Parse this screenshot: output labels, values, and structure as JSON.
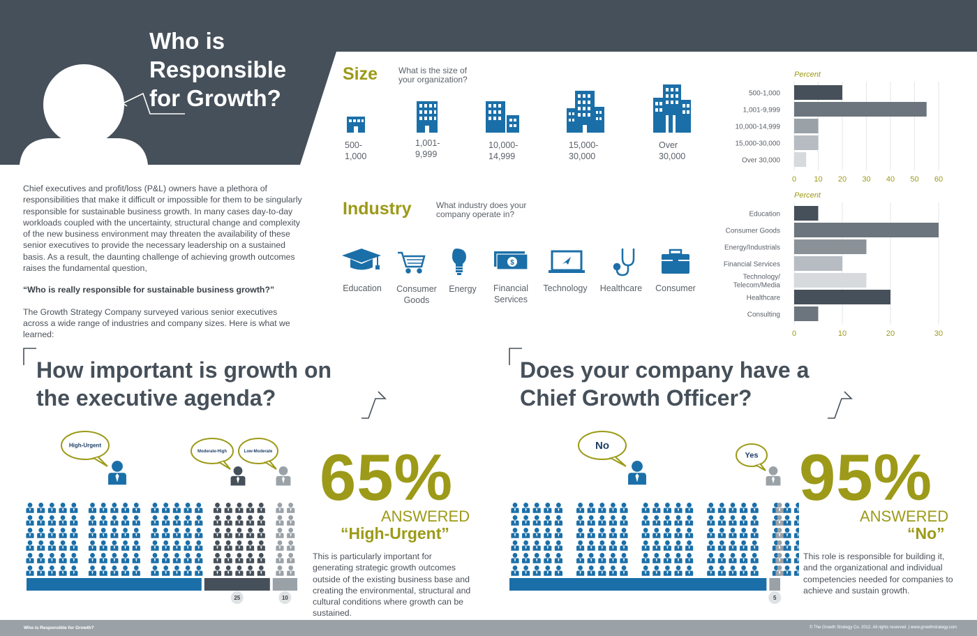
{
  "title_lines": [
    "Who is",
    "Responsible",
    "for Growth?"
  ],
  "intro": {
    "p1": "Chief executives and profit/loss (P&L) owners have a plethora of responsibilities that make it difficult or impossible for them to be singularly responsible for sustainable business growth. In many cases day-to-day workloads coupled with the uncertainty, structural change and complexity of the new business environment may threaten the availability of these senior executives to provide the necessary leadership on a sustained basis. As a result, the daunting challenge of achieving growth outcomes raises the fundamental question,",
    "question": "“Who is really responsible for sustainable business growth?”",
    "p2": "The Growth Strategy Company surveyed various senior executives across a wide range of industries and company sizes. Here is what we learned:"
  },
  "size": {
    "title": "Size",
    "question": "What is the size of your organization?",
    "items": [
      {
        "label": "500-\n1,000",
        "icon": "small-building-icon"
      },
      {
        "label": "1,001-\n9,999",
        "icon": "building-icon"
      },
      {
        "label": "10,000-\n14,999",
        "icon": "buildings-icon"
      },
      {
        "label": "15,000-\n30,000",
        "icon": "office-complex-icon"
      },
      {
        "label": "Over\n30,000",
        "icon": "skyscrapers-icon"
      }
    ]
  },
  "industry": {
    "title": "Industry",
    "question": "What industry does your company operate in?",
    "items": [
      {
        "label": "Education",
        "icon": "graduation-cap-icon"
      },
      {
        "label": "Consumer\nGoods",
        "icon": "shopping-cart-icon"
      },
      {
        "label": "Energy",
        "icon": "light-bulb-icon"
      },
      {
        "label": "Financial\nServices",
        "icon": "money-icon"
      },
      {
        "label": "Technology",
        "icon": "laptop-icon"
      },
      {
        "label": "Healthcare",
        "icon": "stethoscope-icon"
      },
      {
        "label": "Consumer",
        "icon": "briefcase-icon"
      }
    ]
  },
  "chart_data": [
    {
      "type": "bar",
      "orientation": "horizontal",
      "axis_title": "Percent",
      "categories": [
        "500-1,000",
        "1,001-9,999",
        "10,000-14,999",
        "15,000-30,000",
        "Over 30,000"
      ],
      "values": [
        20,
        55,
        10,
        10,
        5
      ],
      "colors": [
        "#46505a",
        "#6c757d",
        "#9aa2a8",
        "#b6bcc1",
        "#d7dadd"
      ],
      "xlim": [
        0,
        60
      ],
      "ticks": [
        0,
        10,
        20,
        30,
        40,
        50,
        60
      ],
      "grid": true
    },
    {
      "type": "bar",
      "orientation": "horizontal",
      "axis_title": "Percent",
      "categories": [
        "Education",
        "Consumer Goods",
        "Energy/Industrials",
        "Financial Services",
        "Technology/\nTelecom/Media",
        "Healthcare",
        "Consulting"
      ],
      "values": [
        5,
        30,
        15,
        10,
        15,
        20,
        5
      ],
      "colors": [
        "#46505a",
        "#6c757d",
        "#8a9298",
        "#b6bcc1",
        "#d7dadd",
        "#46505a",
        "#6c757d"
      ],
      "xlim": [
        0,
        30
      ],
      "ticks": [
        0,
        10,
        20,
        30
      ],
      "grid": true
    },
    {
      "type": "bar",
      "orientation": "stacked",
      "question": "How important is growth on the executive agenda?",
      "series": [
        {
          "name": "High-Urgent",
          "value": 65,
          "color": "#1b6fa8"
        },
        {
          "name": "Moderate-High",
          "value": 25,
          "color": "#46505a"
        },
        {
          "name": "Low-Moderate",
          "value": 10,
          "color": "#9aa2a8"
        }
      ],
      "data_labels": [
        "25",
        "10"
      ]
    },
    {
      "type": "bar",
      "orientation": "stacked",
      "question": "Does your company have a Chief Growth Officer?",
      "series": [
        {
          "name": "No",
          "value": 95,
          "color": "#1b6fa8"
        },
        {
          "name": "Yes",
          "value": 5,
          "color": "#9aa2a8"
        }
      ],
      "data_labels": [
        "5"
      ]
    }
  ],
  "growth": {
    "question_lines": [
      "How important is growth on",
      "the executive agenda?"
    ],
    "percent": "65%",
    "answered": "ANSWERED",
    "answer": "“High-Urgent”",
    "note": "This is particularly important for generating strategic growth outcomes outside of the existing business base and creating the environmental, structural and cultural conditions where growth can be sustained."
  },
  "cgo": {
    "question_lines": [
      "Does your company have a",
      "Chief Growth Officer?"
    ],
    "percent": "95%",
    "answered": "ANSWERED",
    "answer": "“No”",
    "note": "This role is responsible for building it, and the organizational and individual competencies needed for companies to achieve and sustain growth."
  },
  "footer": {
    "left": "Who is Responsible for Growth?",
    "right": "© The Growth Strategy Co. 2012. All rights reserved.  |  www.growthstrategy.com"
  },
  "colors": {
    "header": "#46505a",
    "accent": "#9c9a18",
    "blue": "#1b6fa8",
    "dark": "#46505a",
    "grey": "#9aa2a8"
  }
}
